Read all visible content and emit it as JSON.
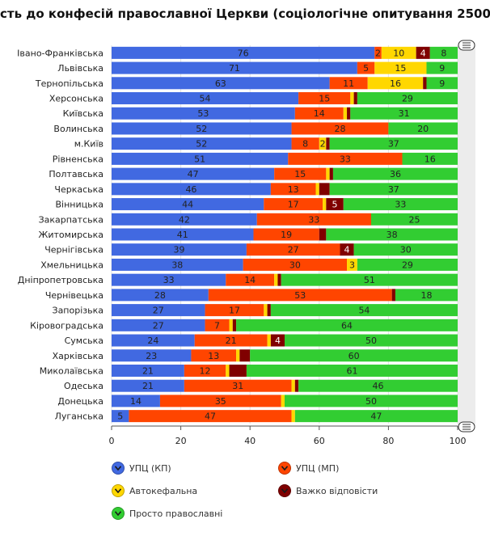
{
  "chart_data": {
    "type": "bar",
    "orientation": "horizontal",
    "stacked": true,
    "title": "сть до конфесій православної Церкви (соціологічне опитування 25000",
    "categories": [
      "Івано-Франківська",
      "Львівська",
      "Тернопільська",
      "Херсонська",
      "Київська",
      "Волинська",
      "м.Київ",
      "Рівненська",
      "Полтавська",
      "Черкаська",
      "Вінницька",
      "Закарпатська",
      "Житомирська",
      "Чернігівська",
      "Хмельницька",
      "Дніпропетровська",
      "Чернівецька",
      "Запорізька",
      "Кіровоградська",
      "Сумська",
      "Харківська",
      "Миколаївська",
      "Одеська",
      "Донецька",
      "Луганська"
    ],
    "series": [
      {
        "name": "УПЦ (КП)",
        "color": "#4169E1",
        "values": [
          76,
          71,
          63,
          54,
          53,
          52,
          52,
          51,
          47,
          46,
          44,
          42,
          41,
          39,
          38,
          33,
          28,
          27,
          27,
          24,
          23,
          21,
          21,
          14,
          5
        ]
      },
      {
        "name": "УПЦ (МП)",
        "color": "#FF4500",
        "values": [
          2,
          5,
          11,
          15,
          14,
          28,
          8,
          33,
          15,
          13,
          17,
          33,
          19,
          27,
          30,
          14,
          53,
          17,
          7,
          21,
          13,
          12,
          31,
          35,
          47
        ]
      },
      {
        "name": "Автокефальна",
        "color": "#FFD700",
        "values": [
          10,
          15,
          16,
          1,
          1,
          0,
          2,
          0,
          1,
          1,
          1,
          0,
          0,
          0,
          3,
          1,
          0,
          1,
          1,
          1,
          1,
          1,
          1,
          1,
          1
        ]
      },
      {
        "name": "Важко відповісти",
        "color": "#800000",
        "values": [
          4,
          0,
          1,
          1,
          1,
          0,
          1,
          0,
          1,
          3,
          5,
          0,
          2,
          4,
          0,
          1,
          1,
          1,
          1,
          4,
          3,
          5,
          1,
          0,
          0
        ]
      },
      {
        "name": "Просто православні",
        "color": "#32CD32",
        "values": [
          8,
          9,
          9,
          29,
          31,
          20,
          37,
          16,
          36,
          37,
          33,
          25,
          38,
          30,
          29,
          51,
          18,
          54,
          64,
          50,
          60,
          61,
          46,
          50,
          47
        ]
      }
    ],
    "labels_shown": [
      [
        true,
        true,
        true,
        true,
        true
      ],
      [
        true,
        true,
        true,
        false,
        true
      ],
      [
        true,
        true,
        true,
        false,
        true
      ],
      [
        true,
        true,
        false,
        false,
        true
      ],
      [
        true,
        true,
        false,
        false,
        true
      ],
      [
        true,
        true,
        false,
        false,
        true
      ],
      [
        true,
        true,
        true,
        false,
        true
      ],
      [
        true,
        true,
        false,
        false,
        true
      ],
      [
        true,
        true,
        false,
        false,
        true
      ],
      [
        true,
        true,
        false,
        false,
        true
      ],
      [
        true,
        true,
        false,
        true,
        true
      ],
      [
        true,
        true,
        false,
        false,
        true
      ],
      [
        true,
        true,
        false,
        false,
        true
      ],
      [
        true,
        true,
        false,
        true,
        true
      ],
      [
        true,
        true,
        true,
        false,
        true
      ],
      [
        true,
        true,
        false,
        false,
        true
      ],
      [
        true,
        true,
        false,
        false,
        true
      ],
      [
        true,
        true,
        false,
        false,
        true
      ],
      [
        true,
        true,
        false,
        false,
        true
      ],
      [
        true,
        true,
        false,
        true,
        true
      ],
      [
        true,
        true,
        false,
        false,
        true
      ],
      [
        true,
        true,
        false,
        false,
        true
      ],
      [
        true,
        true,
        false,
        false,
        true
      ],
      [
        true,
        true,
        false,
        false,
        true
      ],
      [
        true,
        true,
        false,
        false,
        true
      ]
    ],
    "xlim": [
      0,
      100
    ],
    "xticks": [
      0,
      20,
      40,
      60,
      80,
      100
    ],
    "grid": true,
    "legend_position": "bottom"
  }
}
